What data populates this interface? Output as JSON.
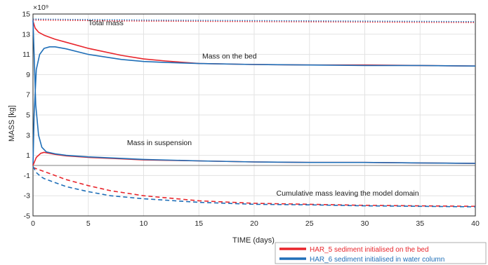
{
  "chart_data": {
    "type": "line",
    "xlabel": "TIME (days)",
    "ylabel": "MASS [kg]",
    "y_multiplier": "×10⁹",
    "xlim": [
      0,
      40
    ],
    "ylim": [
      -5,
      15
    ],
    "xticks": [
      0,
      5,
      10,
      15,
      20,
      25,
      30,
      35,
      40
    ],
    "yticks": [
      -5,
      -3,
      -1,
      1,
      3,
      5,
      7,
      9,
      11,
      13,
      15
    ],
    "grid": true,
    "legend_placement": "bottom-right, outside plot area",
    "annotations": [
      {
        "text": "Total mass",
        "x": 5.0,
        "y": 13.9
      },
      {
        "text": "Mass on the bed",
        "x": 15.3,
        "y": 10.6
      },
      {
        "text": "Mass in suspension",
        "x": 8.5,
        "y": 2.0
      },
      {
        "text": "Cumulative mass leaving the model domain",
        "x": 22.0,
        "y": -3.0
      }
    ],
    "series": [
      {
        "name": "HAR_5 sediment initialised on the bed",
        "color": "#e8252b",
        "style": "dotted",
        "quantity": "Total mass",
        "x": [
          0,
          5,
          10,
          20,
          30,
          40
        ],
        "y": [
          14.4,
          14.35,
          14.3,
          14.25,
          14.2,
          14.15
        ]
      },
      {
        "name": "HAR_6 sediment initialised in water column",
        "color": "#1f6fb8",
        "style": "dotted",
        "quantity": "Total mass",
        "x": [
          0,
          5,
          10,
          20,
          30,
          40
        ],
        "y": [
          14.5,
          14.45,
          14.4,
          14.35,
          14.3,
          14.25
        ]
      },
      {
        "name": "HAR_5 sediment initialised on the bed",
        "color": "#e8252b",
        "style": "solid",
        "quantity": "Mass on the bed",
        "x": [
          0,
          0.2,
          0.5,
          1,
          2,
          3,
          5,
          8,
          10,
          12,
          15,
          20,
          25,
          30,
          35,
          40
        ],
        "y": [
          14.3,
          13.6,
          13.2,
          12.9,
          12.5,
          12.2,
          11.6,
          10.9,
          10.55,
          10.35,
          10.1,
          10.0,
          9.95,
          9.95,
          9.9,
          9.85
        ]
      },
      {
        "name": "HAR_6 sediment initialised in water column",
        "color": "#1f6fb8",
        "style": "solid",
        "quantity": "Mass on the bed",
        "x": [
          0,
          0.1,
          0.3,
          0.6,
          1,
          1.5,
          2,
          3,
          5,
          8,
          10,
          12,
          15,
          20,
          25,
          30,
          35,
          40
        ],
        "y": [
          0,
          5.0,
          9.5,
          11.0,
          11.6,
          11.75,
          11.75,
          11.55,
          11.0,
          10.5,
          10.3,
          10.2,
          10.1,
          10.0,
          9.95,
          9.9,
          9.9,
          9.85
        ]
      },
      {
        "name": "HAR_5 sediment initialised on the bed",
        "color": "#e8252b",
        "style": "solid",
        "quantity": "Mass in suspension",
        "x": [
          0,
          0.3,
          0.7,
          1,
          1.5,
          2,
          3,
          5,
          8,
          10,
          15,
          20,
          25,
          30,
          35,
          40
        ],
        "y": [
          0,
          0.8,
          1.2,
          1.3,
          1.2,
          1.1,
          0.95,
          0.8,
          0.65,
          0.55,
          0.45,
          0.35,
          0.3,
          0.3,
          0.25,
          0.2
        ]
      },
      {
        "name": "HAR_6 sediment initialised in water column",
        "color": "#1f6fb8",
        "style": "solid",
        "quantity": "Mass in suspension",
        "x": [
          0,
          0.1,
          0.25,
          0.5,
          0.8,
          1.2,
          2,
          3,
          5,
          8,
          10,
          15,
          20,
          25,
          30,
          35,
          40
        ],
        "y": [
          14.4,
          11.0,
          6.0,
          3.0,
          1.8,
          1.35,
          1.15,
          1.0,
          0.85,
          0.7,
          0.6,
          0.45,
          0.35,
          0.3,
          0.3,
          0.25,
          0.2
        ]
      },
      {
        "name": "HAR_5 sediment initialised on the bed",
        "color": "#e8252b",
        "style": "dashed",
        "quantity": "Cumulative mass leaving the model domain",
        "x": [
          0,
          0.5,
          1,
          2,
          3,
          5,
          7,
          10,
          15,
          20,
          25,
          30,
          35,
          40
        ],
        "y": [
          -0.2,
          -0.4,
          -0.6,
          -1.0,
          -1.4,
          -2.0,
          -2.5,
          -3.0,
          -3.5,
          -3.75,
          -3.85,
          -3.95,
          -4.0,
          -4.05
        ]
      },
      {
        "name": "HAR_6 sediment initialised in water column",
        "color": "#1f6fb8",
        "style": "dashed",
        "quantity": "Cumulative mass leaving the model domain",
        "x": [
          0,
          0.3,
          0.7,
          1,
          2,
          3,
          5,
          7,
          10,
          15,
          20,
          25,
          30,
          35,
          40
        ],
        "y": [
          -0.1,
          -0.7,
          -1.1,
          -1.3,
          -1.7,
          -2.1,
          -2.6,
          -3.0,
          -3.3,
          -3.65,
          -3.85,
          -3.9,
          -4.0,
          -4.05,
          -4.1
        ]
      }
    ],
    "legend": [
      {
        "label": "HAR_5 sediment initialised on the bed",
        "color": "#e8252b"
      },
      {
        "label": "HAR_6 sediment initialised in water column",
        "color": "#1f6fb8"
      }
    ]
  }
}
